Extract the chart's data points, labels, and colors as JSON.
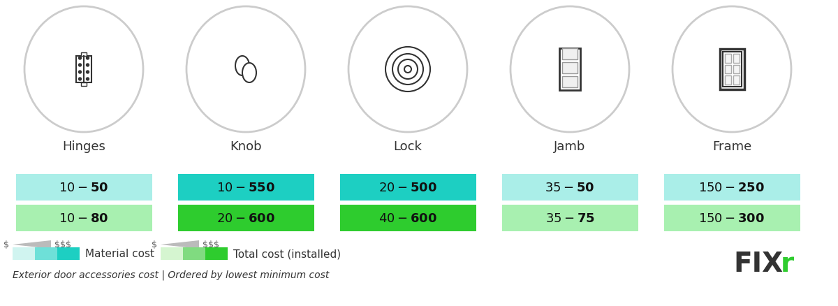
{
  "categories": [
    "Hinges",
    "Knob",
    "Lock",
    "Jamb",
    "Frame"
  ],
  "material_cost": [
    "$10 - $50",
    "$10 - $550",
    "$20 - $500",
    "$35 - $50",
    "$150 - $250"
  ],
  "total_cost": [
    "$10 - $80",
    "$20 - $600",
    "$40 - $600",
    "$35 - $75",
    "$150 - $300"
  ],
  "material_colors_light": [
    "#b2eee8",
    "#b2eee8",
    "#b2eee8",
    "#b2eee8",
    "#b2eee8"
  ],
  "material_colors_mid": [
    "#5dd9cc",
    "#5dd9cc",
    "#5dd9cc",
    "#5dd9cc",
    "#5dd9cc"
  ],
  "total_colors_light": [
    "#b2f0b2",
    "#b2f0b2",
    "#b2f0b2",
    "#b2f0b2",
    "#b2f0b2"
  ],
  "total_colors_mid": [
    "#3dc43d",
    "#3dc43d",
    "#3dc43d",
    "#3dc43d",
    "#3dc43d"
  ],
  "material_row_colors": [
    "#aeeae4",
    "#40d4c8",
    "#40d4c8",
    "#aeeae4",
    "#aeeae4"
  ],
  "total_row_colors": [
    "#a8f0a8",
    "#3dbd3d",
    "#3dbd3d",
    "#a8f0a8",
    "#a8f0a8"
  ],
  "bg_color": "#ffffff",
  "text_color": "#000000",
  "legend_text1": "Material cost",
  "legend_text2": "Total cost (installed)",
  "footer_text": "Exterior door accessories cost | Ordered by lowest minimum cost",
  "cell_colors_material": [
    "#aee9e4",
    "#2ecdc0",
    "#2ecdc0",
    "#aee9e4",
    "#aee9e4"
  ],
  "cell_colors_total": [
    "#a5eeaa",
    "#38cc38",
    "#38cc38",
    "#a5eeaa",
    "#a5eeaa"
  ]
}
